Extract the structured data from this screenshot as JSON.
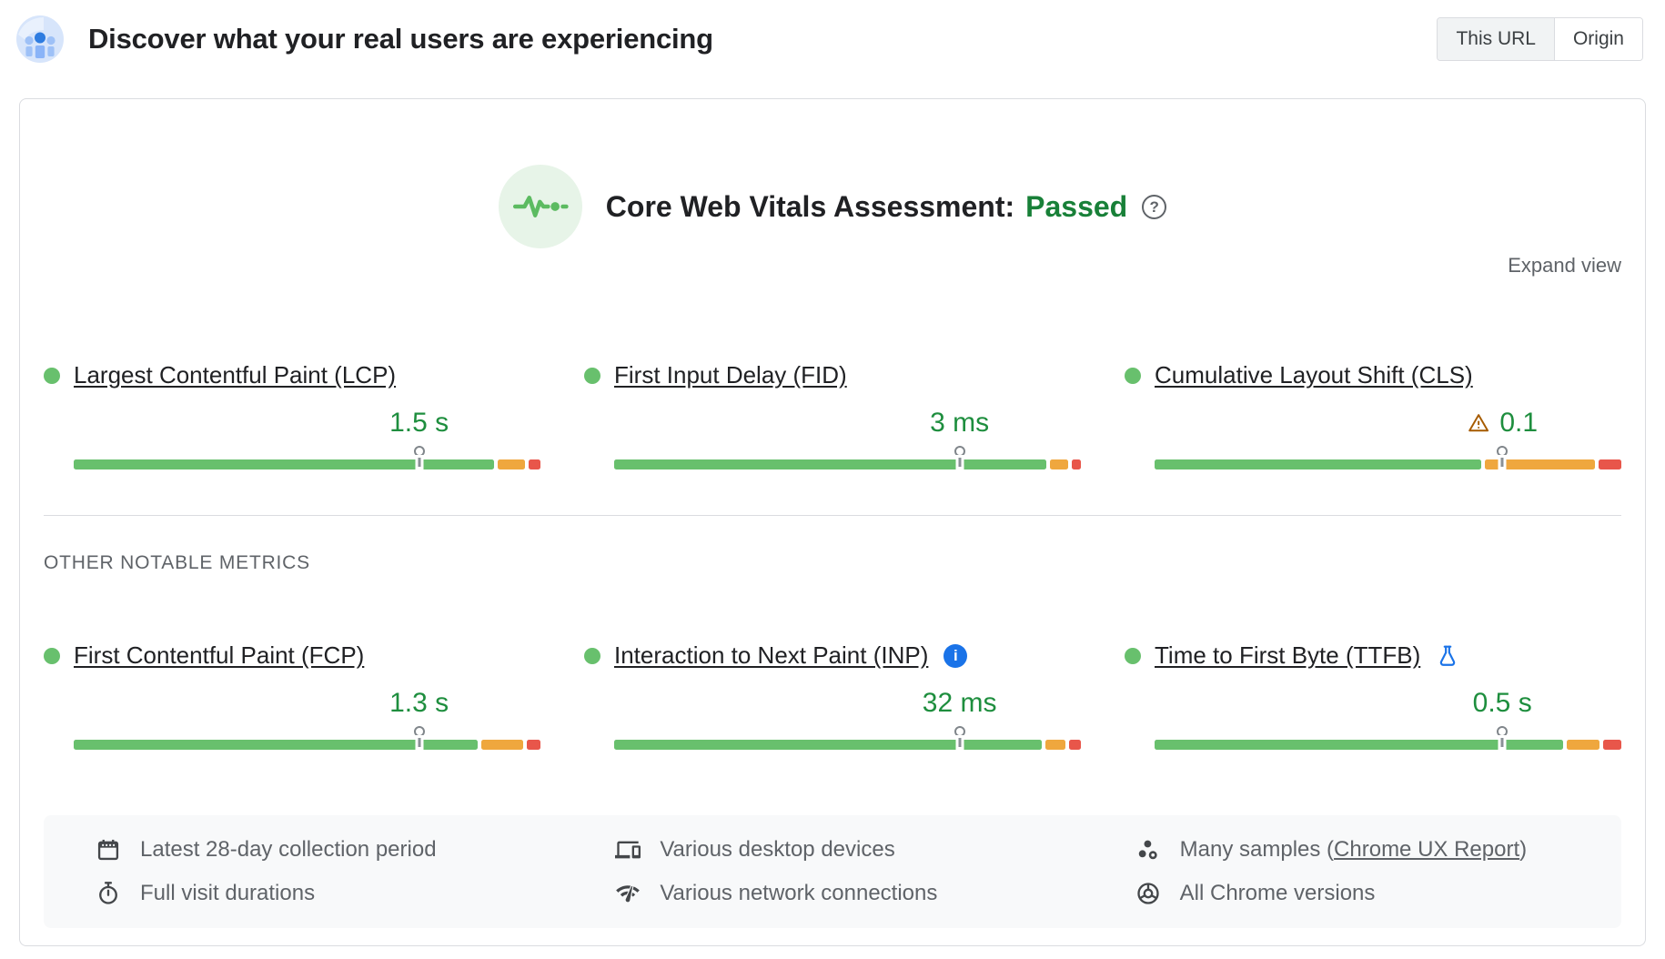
{
  "header": {
    "title": "Discover what your real users are experiencing",
    "toggle": {
      "options": [
        "This URL",
        "Origin"
      ],
      "selected": "This URL"
    }
  },
  "assessment": {
    "heading": "Core Web Vitals Assessment:",
    "status": "Passed",
    "help_glyph": "?",
    "expand_label": "Expand view"
  },
  "other_metrics_title": "OTHER NOTABLE METRICS",
  "core_metrics": [
    {
      "id": "lcp",
      "label": "Largest Contentful Paint (LCP)",
      "value": "1.5 s",
      "warning": false,
      "badge": "none",
      "distribution": {
        "good": 91.5,
        "needs_improvement": 6,
        "poor": 2.5
      },
      "p75_marker_pct": 74
    },
    {
      "id": "fid",
      "label": "First Input Delay (FID)",
      "value": "3 ms",
      "warning": false,
      "badge": "none",
      "distribution": {
        "good": 94,
        "needs_improvement": 4,
        "poor": 2
      },
      "p75_marker_pct": 74
    },
    {
      "id": "cls",
      "label": "Cumulative Layout Shift (CLS)",
      "value": "0.1",
      "warning": true,
      "badge": "none",
      "distribution": {
        "good": 71,
        "needs_improvement": 24,
        "poor": 5
      },
      "p75_marker_pct": 74.5
    }
  ],
  "other_metrics": [
    {
      "id": "fcp",
      "label": "First Contentful Paint (FCP)",
      "value": "1.3 s",
      "warning": false,
      "badge": "none",
      "distribution": {
        "good": 88,
        "needs_improvement": 9,
        "poor": 3
      },
      "p75_marker_pct": 74
    },
    {
      "id": "inp",
      "label": "Interaction to Next Paint (INP)",
      "value": "32 ms",
      "warning": false,
      "badge": "info",
      "distribution": {
        "good": 93,
        "needs_improvement": 4.5,
        "poor": 2.5
      },
      "p75_marker_pct": 74
    },
    {
      "id": "ttfb",
      "label": "Time to First Byte (TTFB)",
      "value": "0.5 s",
      "warning": false,
      "badge": "flask",
      "distribution": {
        "good": 89,
        "needs_improvement": 7,
        "poor": 4
      },
      "p75_marker_pct": 74.5
    }
  ],
  "footer": {
    "columns": [
      {
        "items": [
          {
            "icon": "calendar-icon",
            "text": "Latest 28-day collection period"
          },
          {
            "icon": "stopwatch-icon",
            "text": "Full visit durations"
          }
        ]
      },
      {
        "items": [
          {
            "icon": "devices-icon",
            "text": "Various desktop devices"
          },
          {
            "icon": "wifi-icon",
            "text": "Various network connections"
          }
        ]
      },
      {
        "items": [
          {
            "icon": "samples-icon",
            "text_prefix": "Many samples (",
            "link_text": "Chrome UX Report",
            "text_suffix": ")"
          },
          {
            "icon": "chrome-icon",
            "text": "All Chrome versions"
          }
        ]
      }
    ]
  },
  "colors": {
    "bar_good": "#68c06d",
    "bar_needs_improvement": "#efa73e",
    "bar_poor": "#e8564a",
    "value_green": "#1e8e3e",
    "passed_green": "#188038",
    "link_blue": "#1a73e8",
    "warning_brown": "#a65b00",
    "toggle_selected_bg": "#f1f3f4"
  }
}
